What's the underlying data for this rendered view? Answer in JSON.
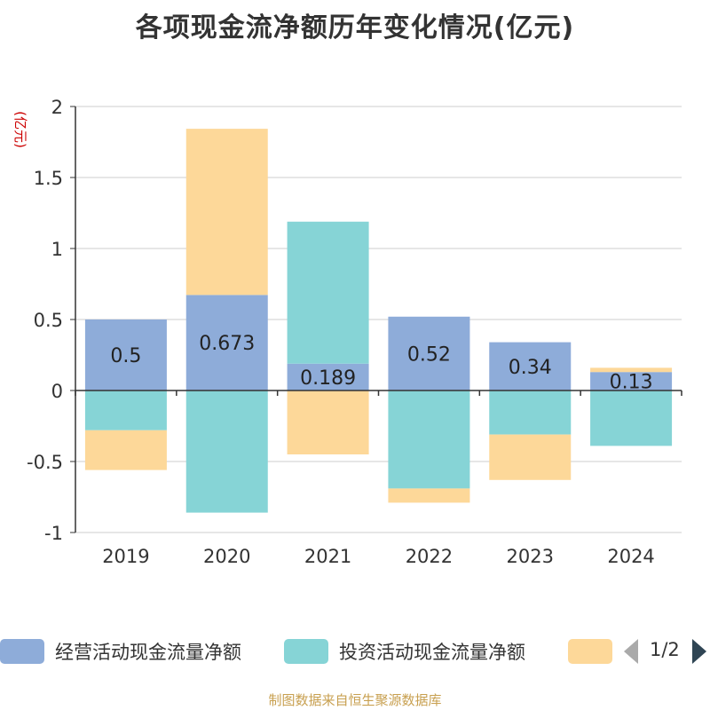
{
  "chart_data": {
    "type": "bar",
    "stacked": true,
    "title": "各项现金流净额历年变化情况(亿元)",
    "ylabel": "(亿元)",
    "categories": [
      "2019",
      "2020",
      "2021",
      "2022",
      "2023",
      "2024"
    ],
    "ylim": [
      -1,
      2
    ],
    "yticks": [
      -1,
      -0.5,
      0,
      0.5,
      1,
      1.5,
      2
    ],
    "ytick_labels": [
      "-1",
      "-0.5",
      "0",
      "0.5",
      "1",
      "1.5",
      "2"
    ],
    "grid": true,
    "legend_position": "bottom",
    "series": [
      {
        "name": "经营活动现金流量净额",
        "color": "#8eacd9",
        "values": [
          0.5,
          0.673,
          0.189,
          0.52,
          0.34,
          0.13
        ],
        "data_labels": [
          "0.5",
          "0.673",
          "0.189",
          "0.52",
          "0.34",
          "0.13"
        ]
      },
      {
        "name": "投资活动现金流量净额",
        "color": "#86d4d6",
        "values": [
          -0.28,
          -0.86,
          1.0,
          -0.69,
          -0.31,
          -0.39
        ]
      },
      {
        "name": "",
        "color": "#fdd899",
        "values": [
          -0.28,
          1.17,
          -0.45,
          -0.1,
          -0.32,
          0.03
        ]
      }
    ]
  },
  "legend": {
    "pager": "1/2"
  },
  "footer": {
    "source": "制图数据来自恒生聚源数据库"
  }
}
